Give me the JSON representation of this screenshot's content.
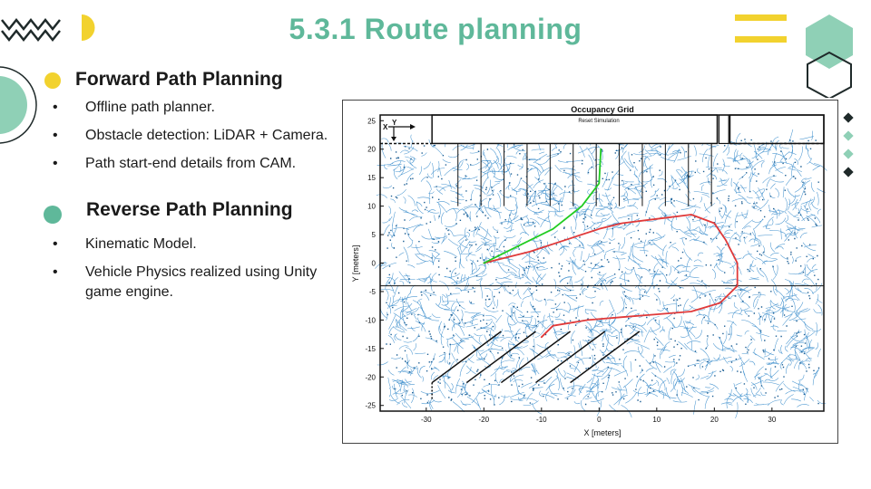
{
  "title": "5.3.1 Route planning",
  "sections": [
    {
      "heading": "Forward Path Planning",
      "bullets": [
        "Offline path planner.",
        "Obstacle detection:  LiDAR + Camera.",
        "Path start-end details from CAM."
      ]
    },
    {
      "heading": "Reverse Path Planning",
      "bullets": [
        "Kinematic Model.",
        "Vehicle Physics realized using Unity game engine."
      ]
    }
  ],
  "figure": {
    "title": "Occupancy Grid",
    "banner": "Reset Simulation",
    "xlabel": "X [meters]",
    "ylabel": "Y [meters]",
    "x_ticks": [
      "-30",
      "-20",
      "-10",
      "0",
      "10",
      "20",
      "30"
    ],
    "y_ticks": [
      "25",
      "20",
      "15",
      "10",
      "5",
      "0",
      "-5",
      "-10",
      "-15",
      "-20",
      "-25"
    ],
    "axis_x_icon": "X",
    "axis_y_icon": "Y"
  },
  "chart_data": {
    "type": "line",
    "title": "Occupancy Grid",
    "xlabel": "X [meters]",
    "ylabel": "Y [meters]",
    "xlim": [
      -38,
      39
    ],
    "ylim": [
      -26,
      26
    ],
    "series": [
      {
        "color": "#e03a3a",
        "x": [
          -20,
          -12,
          -6,
          0,
          4,
          8,
          12,
          16,
          20,
          22,
          24,
          24,
          21,
          16,
          10,
          4,
          -2,
          -8,
          -10
        ],
        "y": [
          0,
          2,
          4,
          6,
          7,
          7.5,
          8,
          8.5,
          7,
          4,
          0,
          -4,
          -7,
          -8.5,
          -9,
          -9.5,
          -10,
          -11,
          -13
        ]
      },
      {
        "color": "#22cc22",
        "x": [
          -20,
          -14,
          -8,
          -3,
          0,
          0.2,
          0.3
        ],
        "y": [
          0,
          3,
          6,
          10,
          14,
          18,
          20
        ]
      }
    ],
    "tree_color": "#2a84c8",
    "grid": false
  },
  "colors": {
    "accent": "#5fb89a",
    "yellow": "#f2d22e",
    "dark": "#1f2a2a",
    "tree": "#2a84c8"
  },
  "icons": [
    "zigzag-icon",
    "half-circle-icon",
    "bars-icon",
    "hexagon-icon",
    "diamond-icon"
  ]
}
